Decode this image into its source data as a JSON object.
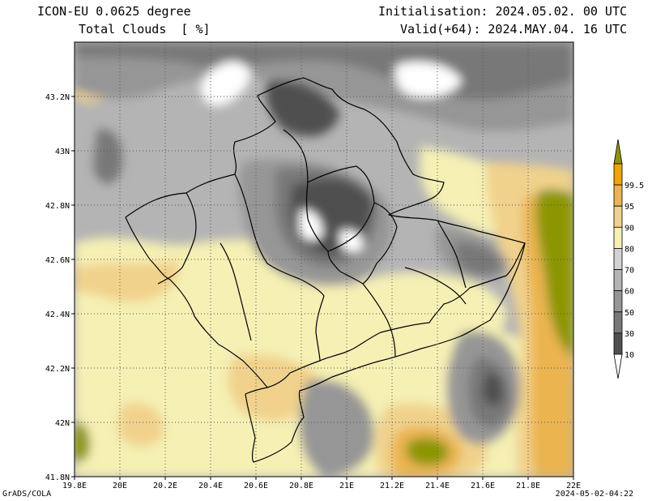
{
  "header": {
    "model_title": "ICON-EU 0.0625 degree",
    "field_title": "Total Clouds  [ %]",
    "initialisation": "Initialisation: 2024.05.02. 00 UTC",
    "valid": "Valid(+64): 2024.MAY.04. 16 UTC"
  },
  "footer": {
    "credit": "GrADS/COLA",
    "timestamp": "2024-05-02-04:22"
  },
  "map": {
    "lon_range": [
      19.8,
      22.0
    ],
    "lat_range": [
      41.8,
      43.4
    ],
    "lon_ticks": [
      "19.8E",
      "20E",
      "20.2E",
      "20.4E",
      "20.6E",
      "20.8E",
      "21E",
      "21.2E",
      "21.4E",
      "21.6E",
      "21.8E",
      "22E"
    ],
    "lat_ticks": [
      "41.8N",
      "42N",
      "42.2N",
      "42.4N",
      "42.6N",
      "42.8N",
      "43N",
      "43.2N"
    ],
    "grid": "dotted",
    "background_color": "#b4b4b4"
  },
  "colorbar": {
    "labels": [
      "10",
      "30",
      "50",
      "60",
      "70",
      "80",
      "90",
      "95",
      "99.5"
    ],
    "colors": [
      "#ffffff",
      "#505050",
      "#787878",
      "#969696",
      "#b4b4b4",
      "#d2d2d2",
      "#f5f0b4",
      "#f0d28c",
      "#ebb450",
      "#f0a500",
      "#8c9600"
    ]
  }
}
